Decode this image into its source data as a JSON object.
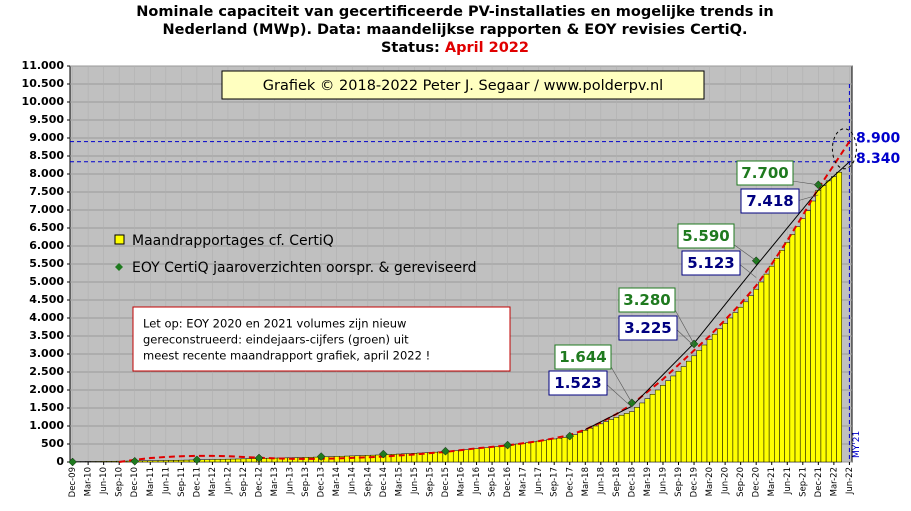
{
  "chart_data": {
    "type": "bar",
    "title_lines": [
      "Nominale capaciteit van gecertificeerde PV-installaties en mogelijke trends in",
      "Nederland (MWp). Data: maandelijkse rapporten & EOY revisies CertiQ."
    ],
    "status_label": "Status:",
    "status_value": "April 2022",
    "copyright": "Grafiek © 2018-2022 Peter J. Segaar / www.polderpv.nl",
    "note_lines": [
      "Let op: EOY 2020 en 2021 volumes zijn nieuw",
      "gereconstrueerd: eindejaars-cijfers (groen) uit",
      "meest recente maandrapport grafiek, april 2022 !"
    ],
    "vertical_label": "MY'21",
    "categories": [
      "Dec-09",
      null,
      null,
      "Mar-10",
      null,
      null,
      "Jun-10",
      null,
      null,
      "Sep-10",
      null,
      null,
      "Dec-10",
      null,
      null,
      "Mar-11",
      null,
      null,
      "Jun-11",
      null,
      null,
      "Sep-11",
      null,
      null,
      "Dec-11",
      null,
      null,
      "Mar-12",
      null,
      null,
      "Jun-12",
      null,
      null,
      "Sep-12",
      null,
      null,
      "Dec-12",
      null,
      null,
      "Mar-13",
      null,
      null,
      "Jun-13",
      null,
      null,
      "Sep-13",
      null,
      null,
      "Dec-13",
      null,
      null,
      "Mar-14",
      null,
      null,
      "Jun-14",
      null,
      null,
      "Sep-14",
      null,
      null,
      "Dec-14",
      null,
      null,
      "Mar-15",
      null,
      null,
      "Jun-15",
      null,
      null,
      "Sep-15",
      null,
      null,
      "Dec-15",
      null,
      null,
      "Mar-16",
      null,
      null,
      "Jun-16",
      null,
      null,
      "Sep-16",
      null,
      null,
      "Dec-16",
      null,
      null,
      "Mar-17",
      null,
      null,
      "Jun-17",
      null,
      null,
      "Sep-17",
      null,
      null,
      "Dec-17",
      null,
      null,
      "Mar-18",
      null,
      null,
      "Jun-18",
      null,
      null,
      "Sep-18",
      null,
      null,
      "Dec-18",
      null,
      null,
      "Mar-19",
      null,
      null,
      "Jun-19",
      null,
      null,
      "Sep-19",
      null,
      null,
      "Dec-19",
      null,
      null,
      "Mar-20",
      null,
      null,
      "Jun-20",
      null,
      null,
      "Sep-20",
      null,
      null,
      "Dec-20",
      null,
      null,
      "Mar-21",
      null,
      null,
      "Jun-21",
      null,
      null,
      "Sep-21",
      null,
      null,
      "Dec-21",
      null,
      null,
      "Mar-22",
      null,
      null,
      "Jun-22"
    ],
    "series": [
      {
        "name": "Maandrapportages cf. CertiQ",
        "color": "#ffff00",
        "values": [
          10,
          12,
          13,
          14,
          15,
          16,
          18,
          20,
          21,
          23,
          25,
          27,
          30,
          32,
          34,
          36,
          38,
          40,
          42,
          45,
          47,
          50,
          53,
          56,
          60,
          63,
          66,
          69,
          72,
          75,
          78,
          81,
          84,
          88,
          92,
          96,
          100,
          103,
          106,
          109,
          112,
          115,
          118,
          121,
          124,
          128,
          132,
          136,
          140,
          145,
          150,
          155,
          160,
          165,
          170,
          175,
          180,
          185,
          190,
          195,
          200,
          207,
          214,
          221,
          228,
          235,
          242,
          250,
          257,
          265,
          273,
          281,
          290,
          303,
          316,
          330,
          344,
          358,
          372,
          386,
          400,
          414,
          428,
          444,
          460,
          480,
          500,
          520,
          540,
          560,
          580,
          600,
          620,
          640,
          660,
          680,
          700,
          760,
          820,
          880,
          940,
          1000,
          1060,
          1120,
          1180,
          1240,
          1300,
          1350,
          1400,
          1520,
          1640,
          1760,
          1880,
          2000,
          2130,
          2260,
          2390,
          2520,
          2650,
          2800,
          2950,
          3100,
          3250,
          3400,
          3550,
          3700,
          3850,
          4000,
          4150,
          4300,
          4450,
          4620,
          4800,
          5000,
          5220,
          5440,
          5660,
          5880,
          6100,
          6320,
          6540,
          6760,
          6980,
          7250,
          7550,
          7680,
          7810,
          7930,
          8050,
          null,
          null
        ]
      },
      {
        "name": "EOY CertiQ jaaroverzichten oorspr. & gereviseerd",
        "color": "#1f7a1f",
        "x": [
          "Dec-09",
          "Dec-10",
          "Dec-11",
          "Dec-12",
          "Dec-13",
          "Dec-14",
          "Dec-15",
          "Dec-16",
          "Dec-17",
          "Dec-18",
          "Dec-19",
          "Dec-20",
          "Dec-21"
        ],
        "values": [
          0,
          20,
          60,
          110,
          150,
          220,
          300,
          470,
          720,
          1644,
          3280,
          5590,
          7700
        ],
        "value_labels": [
          null,
          null,
          null,
          null,
          null,
          null,
          null,
          null,
          null,
          "1.644",
          "3.280",
          "5.590",
          "7.700"
        ]
      }
    ],
    "original_eoy": [
      {
        "x": "Dec-18",
        "value": 1523,
        "label": "1.523"
      },
      {
        "x": "Dec-19",
        "value": 3225,
        "label": "3.225"
      },
      {
        "x": "Dec-20",
        "value": 5123,
        "label": "5.123"
      },
      {
        "x": "Dec-21",
        "value": 7418,
        "label": "7.418"
      }
    ],
    "trend_lines": [
      {
        "color": "#e00000",
        "dashed": true,
        "x": [
          "Sep-10",
          "Dec-10",
          "Mar-11",
          "Jun-11",
          "Sep-11",
          "Dec-11",
          "Mar-12",
          "Jun-12",
          "Sep-12",
          "Dec-12",
          "Mar-13",
          "Jun-13",
          "Sep-13",
          "Dec-13",
          "Mar-14",
          "Jun-14",
          "Sep-14",
          "Dec-14",
          "Mar-15",
          "Jun-15",
          "Sep-15",
          "Dec-15",
          "Mar-16",
          "Jun-16",
          "Sep-16",
          "Dec-16",
          "Mar-17",
          "Jun-17",
          "Sep-17",
          "Dec-17",
          "Mar-18",
          "Jun-18",
          "Sep-18",
          "Dec-18",
          "Mar-19",
          "Jun-19",
          "Sep-19",
          "Dec-19",
          "Mar-20",
          "Jun-20",
          "Sep-20",
          "Dec-20",
          "Mar-21",
          "Jun-21",
          "Sep-21",
          "Dec-21",
          "Mar-22",
          "Jun-22"
        ],
        "values": [
          0,
          60,
          110,
          140,
          160,
          170,
          170,
          160,
          140,
          120,
          100,
          90,
          85,
          90,
          100,
          115,
          130,
          150,
          180,
          210,
          245,
          280,
          330,
          380,
          420,
          460,
          520,
          580,
          660,
          750,
          900,
          1100,
          1330,
          1600,
          1950,
          2300,
          2700,
          3100,
          3500,
          3950,
          4400,
          4900,
          5500,
          6150,
          6850,
          7600,
          8250,
          8900
        ]
      },
      {
        "color": "#000000",
        "dashed": false,
        "x": [
          "Mar-18",
          "Dec-18",
          "Dec-19",
          "Dec-20",
          "Dec-21",
          "Jun-22"
        ],
        "values": [
          900,
          1550,
          3300,
          5450,
          7550,
          8340
        ]
      }
    ],
    "reference_lines": [
      {
        "value": 8900,
        "label": "8.900",
        "color": "#0000cc"
      },
      {
        "value": 8340,
        "label": "8.340",
        "color": "#0000cc"
      }
    ],
    "ylim": [
      0,
      11000
    ],
    "yticks": [
      0,
      500,
      {
        "value": 1000,
        "label": "1.000"
      },
      {
        "value": 1500,
        "label": "1.500"
      },
      {
        "value": 2000,
        "label": "2.000"
      },
      {
        "value": 2500,
        "label": "2.500"
      },
      {
        "value": 3000,
        "label": "3.000"
      },
      {
        "value": 3500,
        "label": "3.500"
      },
      {
        "value": 4000,
        "label": "4.000"
      },
      {
        "value": 4500,
        "label": "4.500"
      },
      {
        "value": 5000,
        "label": "5.000"
      },
      {
        "value": 5500,
        "label": "5.500"
      },
      {
        "value": 6000,
        "label": "6.000"
      },
      {
        "value": 6500,
        "label": "6.500"
      },
      {
        "value": 7000,
        "label": "7.000"
      },
      {
        "value": 7500,
        "label": "7.500"
      },
      {
        "value": 8000,
        "label": "8.000"
      },
      {
        "value": 8500,
        "label": "8.500"
      },
      {
        "value": 9000,
        "label": "9.000"
      },
      {
        "value": 9500,
        "label": "9.500"
      },
      {
        "value": 10000,
        "label": "10.000"
      },
      {
        "value": 10500,
        "label": "10.500"
      },
      {
        "value": 11000,
        "label": "11.000"
      }
    ],
    "grid": true,
    "plot_background": "#c0c0c0"
  }
}
